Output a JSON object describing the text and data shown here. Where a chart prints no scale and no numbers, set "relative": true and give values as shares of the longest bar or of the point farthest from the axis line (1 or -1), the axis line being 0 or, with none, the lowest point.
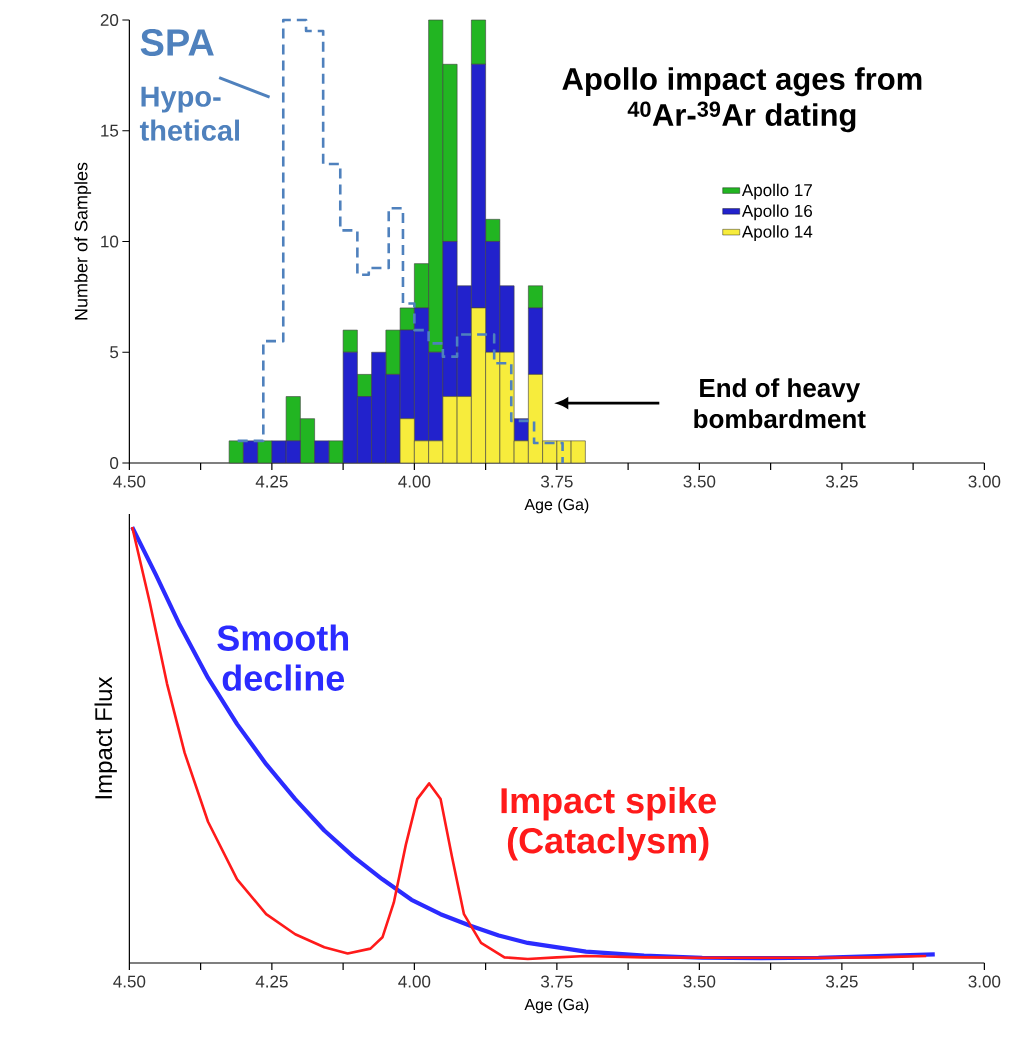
{
  "chart_data": [
    {
      "type": "bar",
      "title": "Apollo impact ages from $^{40}$Ar-$^{39}$Ar dating",
      "xlabel": "Age (Ga)",
      "ylabel": "Number of Samples",
      "x": [
        4.3125,
        4.2875,
        4.2625,
        4.2375,
        4.2125,
        4.1875,
        4.1625,
        4.1375,
        4.1125,
        4.0875,
        4.0625,
        4.0375,
        4.0125,
        3.9875,
        3.9625,
        3.9375,
        3.9125,
        3.8875,
        3.8625,
        3.8375,
        3.8125,
        3.7875,
        3.7625,
        3.7375,
        3.7125
      ],
      "stacked": true,
      "series": [
        {
          "name": "Apollo 14",
          "color": "#f7ec3c",
          "values": [
            0,
            0,
            0,
            0,
            0,
            0,
            0,
            0,
            0,
            0,
            0,
            0,
            2,
            1,
            1,
            3,
            3,
            7,
            5,
            5,
            1,
            4,
            1,
            1,
            1
          ]
        },
        {
          "name": "Apollo 16",
          "color": "#2222cc",
          "values": [
            0,
            1,
            0,
            1,
            1,
            0,
            1,
            0,
            5,
            3,
            5,
            4,
            4,
            6,
            4,
            7,
            5,
            11,
            5,
            3,
            1,
            3,
            0,
            0,
            0
          ]
        },
        {
          "name": "Apollo 17",
          "color": "#22b522",
          "values": [
            1,
            0,
            1,
            0,
            2,
            2,
            0,
            1,
            1,
            1,
            0,
            2,
            1,
            2,
            15,
            8,
            0,
            2,
            1,
            0,
            0,
            1,
            0,
            0,
            0
          ]
        },
        {
          "type": "step",
          "color": "#4f81bd",
          "line_style": "dashed",
          "x": [
            4.31,
            4.265,
            4.23,
            4.19,
            4.16,
            4.13,
            4.1,
            4.08,
            4.045,
            4.02,
            4.0,
            3.975,
            3.95,
            3.925,
            3.86,
            3.83,
            3.79,
            3.74
          ],
          "values": [
            1,
            5.5,
            20,
            19.5,
            13.5,
            10.5,
            8.5,
            8.8,
            11.5,
            7.2,
            6,
            5.4,
            4.8,
            5.8,
            4.5,
            1.9,
            0.9,
            0
          ]
        }
      ],
      "xlim": [
        4.5,
        3.0
      ],
      "xticks": [
        {
          "value": 4.5,
          "label": "4.50"
        },
        {
          "value": 4.375,
          "label": null
        },
        {
          "value": 4.25,
          "label": "4.25"
        },
        {
          "value": 4.125,
          "label": null
        },
        {
          "value": 4.0,
          "label": "4.00"
        },
        {
          "value": 3.875,
          "label": null
        },
        {
          "value": 3.75,
          "label": "3.75"
        },
        {
          "value": 3.625,
          "label": null
        },
        {
          "value": 3.5,
          "label": "3.50"
        },
        {
          "value": 3.375,
          "label": null
        },
        {
          "value": 3.25,
          "label": "3.25"
        },
        {
          "value": 3.125,
          "label": null
        },
        {
          "value": 3.0,
          "label": "3.00"
        }
      ],
      "ylim": [
        0,
        20
      ],
      "yticks": [
        0,
        5,
        10,
        15,
        20
      ],
      "legend": "right",
      "annotations": [
        "SPA",
        "Hypo-thetical",
        "End of heavy bombardment"
      ]
    },
    {
      "type": "line",
      "relative": true,
      "xlabel": "Age (Ga)",
      "ylabel": "Impact Flux",
      "xlim": [
        4.5,
        3.0
      ],
      "xticks": [
        {
          "value": 4.5,
          "label": "4.50"
        },
        {
          "value": 4.375,
          "label": null
        },
        {
          "value": 4.25,
          "label": "4.25"
        },
        {
          "value": 4.125,
          "label": null
        },
        {
          "value": 4.0,
          "label": "4.00"
        },
        {
          "value": 3.875,
          "label": null
        },
        {
          "value": 3.75,
          "label": "3.75"
        },
        {
          "value": 3.625,
          "label": null
        },
        {
          "value": 3.5,
          "label": "3.50"
        },
        {
          "value": 3.375,
          "label": null
        },
        {
          "value": 3.25,
          "label": "3.25"
        },
        {
          "value": 3.125,
          "label": null
        },
        {
          "value": 3.0,
          "label": "3.00"
        }
      ],
      "series": [
        {
          "name": "Smooth decline",
          "color": "#2b2bff",
          "x": [
            4.495,
            4.454,
            4.413,
            4.362,
            4.311,
            4.26,
            4.209,
            4.158,
            4.107,
            4.056,
            4.005,
            3.954,
            3.903,
            3.852,
            3.801,
            3.699,
            3.597,
            3.495,
            3.393,
            3.291,
            3.189,
            3.087
          ],
          "values": [
            1.0,
            0.892,
            0.779,
            0.654,
            0.548,
            0.456,
            0.376,
            0.304,
            0.244,
            0.192,
            0.145,
            0.112,
            0.086,
            0.063,
            0.046,
            0.026,
            0.017,
            0.012,
            0.011,
            0.012,
            0.016,
            0.02
          ]
        },
        {
          "name": "Impact spike (Cataclysm)",
          "color": "#ff1a1a",
          "x": [
            4.495,
            4.464,
            4.434,
            4.403,
            4.362,
            4.311,
            4.26,
            4.209,
            4.158,
            4.117,
            4.077,
            4.056,
            4.036,
            4.015,
            3.995,
            3.974,
            3.954,
            3.934,
            3.913,
            3.883,
            3.842,
            3.801,
            3.75,
            3.699,
            3.597,
            3.495,
            3.393,
            3.291,
            3.189,
            3.102
          ],
          "values": [
            1.0,
            0.826,
            0.641,
            0.482,
            0.324,
            0.192,
            0.112,
            0.066,
            0.036,
            0.022,
            0.033,
            0.059,
            0.139,
            0.271,
            0.376,
            0.412,
            0.376,
            0.244,
            0.112,
            0.046,
            0.013,
            0.009,
            0.013,
            0.016,
            0.013,
            0.012,
            0.012,
            0.012,
            0.013,
            0.016
          ]
        }
      ]
    }
  ]
}
